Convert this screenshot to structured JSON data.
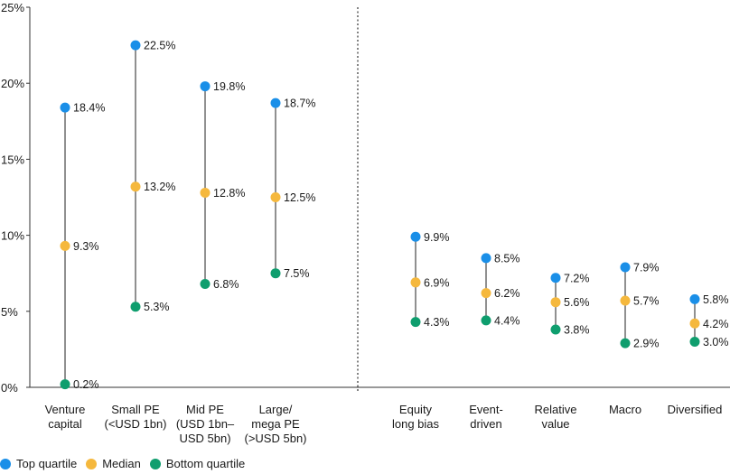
{
  "chart_data": {
    "type": "scatter",
    "style": "range-dot",
    "categories": [
      [
        "Venture",
        "capital"
      ],
      [
        "Small PE",
        "(<USD 1bn)"
      ],
      [
        "Mid PE",
        "(USD 1bn–",
        "USD 5bn)"
      ],
      [
        "Large/",
        "mega PE",
        "(>USD 5bn)"
      ],
      [
        "Equity",
        "long bias"
      ],
      [
        "Event-",
        "driven"
      ],
      [
        "Relative",
        "value"
      ],
      [
        "Macro"
      ],
      [
        "Diversified"
      ]
    ],
    "series": [
      {
        "name": "Top quartile",
        "color": "#1a8fe8",
        "values": [
          18.4,
          22.5,
          19.8,
          18.7,
          9.9,
          8.5,
          7.2,
          7.9,
          5.8
        ],
        "labels": [
          "18.4%",
          "22.5%",
          "19.8%",
          "18.7%",
          "9.9%",
          "8.5%",
          "7.2%",
          "7.9%",
          "5.8%"
        ]
      },
      {
        "name": "Median",
        "color": "#f5b83d",
        "values": [
          9.3,
          13.2,
          12.8,
          12.5,
          6.9,
          6.2,
          5.6,
          5.7,
          4.2
        ],
        "labels": [
          "9.3%",
          "13.2%",
          "12.8%",
          "12.5%",
          "6.9%",
          "6.2%",
          "5.6%",
          "5.7%",
          "4.2%"
        ]
      },
      {
        "name": "Bottom quartile",
        "color": "#0f9e6e",
        "values": [
          0.2,
          5.3,
          6.8,
          7.5,
          4.3,
          4.4,
          3.8,
          2.9,
          3.0
        ],
        "labels": [
          "0.2%",
          "5.3%",
          "6.8%",
          "7.5%",
          "4.3%",
          "4.4%",
          "3.8%",
          "2.9%",
          "3.0%"
        ]
      }
    ],
    "ylim": [
      0,
      25
    ],
    "yticks": [
      0,
      5,
      10,
      15,
      20,
      25
    ],
    "ytick_labels": [
      "0%",
      "5%",
      "10%",
      "15%",
      "20%",
      "25%"
    ],
    "group_divider": "dotted line between Large/mega PE and Equity long bias",
    "legend_position": "bottom-left",
    "grid": false
  }
}
